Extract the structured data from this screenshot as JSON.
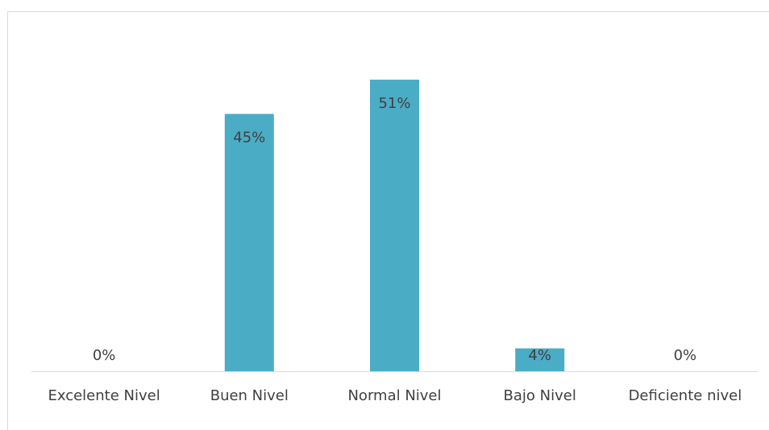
{
  "chart_data": {
    "type": "bar",
    "title": "",
    "xlabel": "",
    "ylabel": "",
    "categories": [
      "Excelente Nivel",
      "Buen Nivel",
      "Normal Nivel",
      "Bajo Nivel",
      "Deficiente nivel"
    ],
    "values": [
      0,
      45,
      51,
      4,
      0
    ],
    "data_labels": [
      "0%",
      "45%",
      "51%",
      "4%",
      "0%"
    ],
    "ylim": [
      0,
      60
    ],
    "grid": false,
    "legend": "none",
    "bar_color": "#4bacc6"
  }
}
